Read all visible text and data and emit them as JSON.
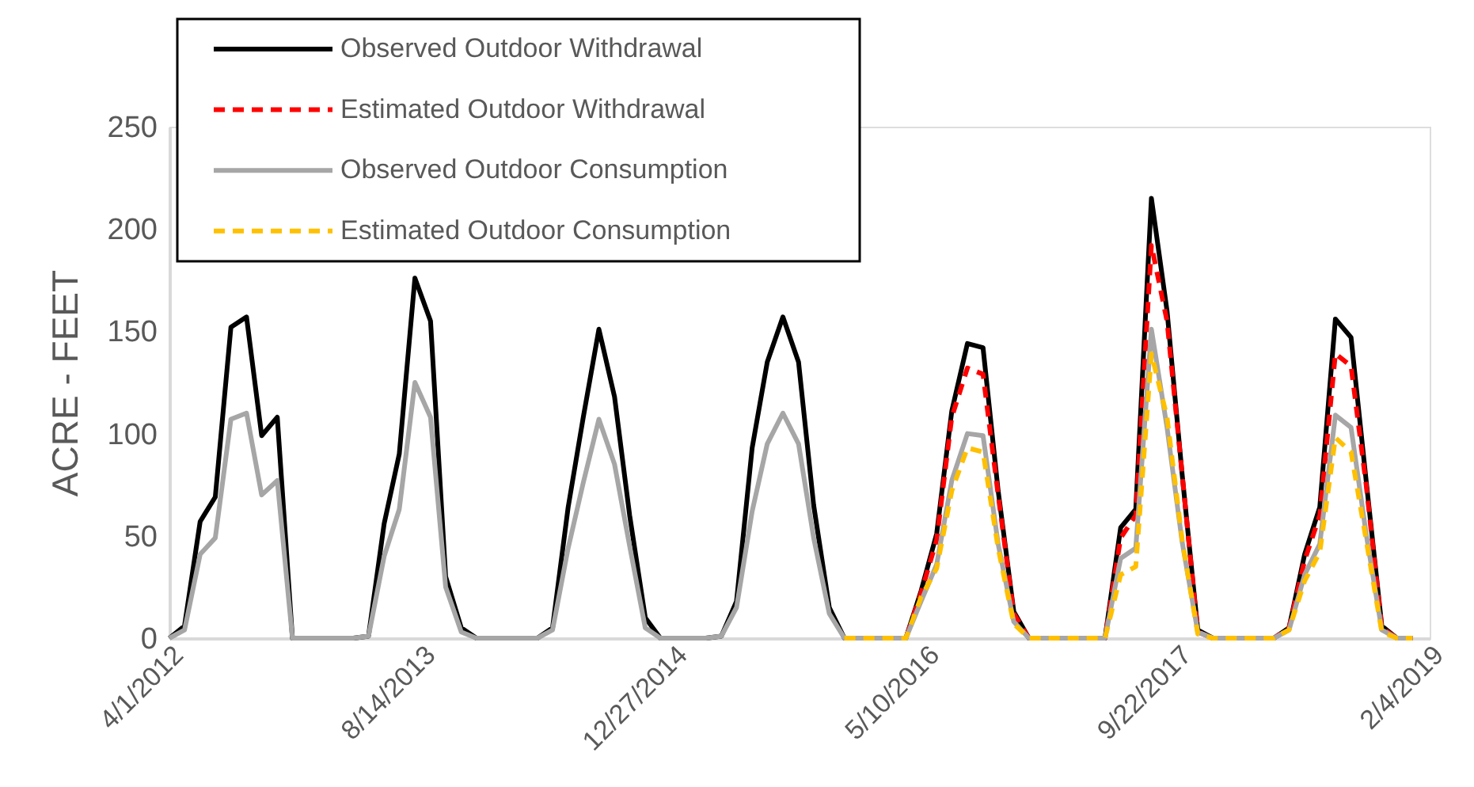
{
  "chart_data": {
    "type": "line",
    "ylabel": "ACRE - FEET",
    "x": [
      "2012-04",
      "2012-05",
      "2012-06",
      "2012-07",
      "2012-08",
      "2012-09",
      "2012-10",
      "2012-11",
      "2012-12",
      "2013-01",
      "2013-02",
      "2013-03",
      "2013-04",
      "2013-05",
      "2013-06",
      "2013-07",
      "2013-08",
      "2013-09",
      "2013-10",
      "2013-11",
      "2013-12",
      "2014-01",
      "2014-02",
      "2014-03",
      "2014-04",
      "2014-05",
      "2014-06",
      "2014-07",
      "2014-08",
      "2014-09",
      "2014-10",
      "2014-11",
      "2014-12",
      "2015-01",
      "2015-02",
      "2015-03",
      "2015-04",
      "2015-05",
      "2015-06",
      "2015-07",
      "2015-08",
      "2015-09",
      "2015-10",
      "2015-11",
      "2015-12",
      "2016-01",
      "2016-02",
      "2016-03",
      "2016-04",
      "2016-05",
      "2016-06",
      "2016-07",
      "2016-08",
      "2016-09",
      "2016-10",
      "2016-11",
      "2016-12",
      "2017-01",
      "2017-02",
      "2017-03",
      "2017-04",
      "2017-05",
      "2017-06",
      "2017-07",
      "2017-08",
      "2017-09",
      "2017-10",
      "2017-11",
      "2017-12",
      "2018-01",
      "2018-02",
      "2018-03",
      "2018-04",
      "2018-05",
      "2018-06",
      "2018-07",
      "2018-08",
      "2018-09",
      "2018-10",
      "2018-11",
      "2018-12",
      "2019-01"
    ],
    "series": [
      {
        "name": "Observed Outdoor Withdrawal",
        "color": "#000000",
        "line_style": "solid",
        "values": [
          0,
          6,
          57,
          69,
          152,
          157,
          99,
          108,
          0,
          0,
          0,
          0,
          0,
          1,
          56,
          90,
          176,
          155,
          30,
          5,
          0,
          0,
          0,
          0,
          0,
          5,
          64,
          108,
          151,
          118,
          60,
          10,
          0,
          0,
          0,
          0,
          1,
          18,
          93,
          135,
          157,
          135,
          65,
          15,
          0,
          0,
          0,
          0,
          0,
          23,
          51,
          111,
          144,
          142,
          72,
          13,
          0,
          0,
          0,
          0,
          0,
          0,
          54,
          63,
          215,
          160,
          80,
          4,
          0,
          0,
          0,
          0,
          0,
          5,
          41,
          64,
          156,
          147,
          77,
          6,
          0,
          0
        ]
      },
      {
        "name": "Estimated Outdoor Withdrawal",
        "color": "#ff0000",
        "line_style": "dashed",
        "values": [
          null,
          null,
          null,
          null,
          null,
          null,
          null,
          null,
          null,
          null,
          null,
          null,
          null,
          null,
          null,
          null,
          null,
          null,
          null,
          null,
          null,
          null,
          null,
          null,
          null,
          null,
          null,
          null,
          null,
          null,
          null,
          null,
          null,
          null,
          null,
          null,
          null,
          null,
          null,
          null,
          null,
          null,
          null,
          null,
          null,
          null,
          null,
          0,
          0,
          22,
          48,
          108,
          132,
          129,
          70,
          12,
          0,
          0,
          0,
          0,
          0,
          0,
          49,
          60,
          192,
          155,
          80,
          3,
          0,
          0,
          0,
          0,
          0,
          5,
          38,
          60,
          139,
          133,
          75,
          5,
          0,
          0
        ]
      },
      {
        "name": "Observed Outdoor Consumption",
        "color": "#a6a6a6",
        "line_style": "solid",
        "values": [
          0,
          4,
          41,
          49,
          107,
          110,
          70,
          77,
          0,
          0,
          0,
          0,
          0,
          1,
          40,
          63,
          125,
          108,
          25,
          3,
          0,
          0,
          0,
          0,
          0,
          4,
          44,
          76,
          107,
          85,
          45,
          5,
          0,
          0,
          0,
          0,
          1,
          15,
          62,
          95,
          110,
          95,
          49,
          12,
          0,
          0,
          0,
          0,
          0,
          18,
          36,
          77,
          100,
          99,
          46,
          8,
          0,
          0,
          0,
          0,
          0,
          0,
          39,
          44,
          151,
          103,
          47,
          3,
          0,
          0,
          0,
          0,
          0,
          4,
          31,
          46,
          109,
          103,
          51,
          4,
          0,
          0
        ]
      },
      {
        "name": "Estimated Outdoor Consumption",
        "color": "#ffc000",
        "line_style": "dashed",
        "values": [
          null,
          null,
          null,
          null,
          null,
          null,
          null,
          null,
          null,
          null,
          null,
          null,
          null,
          null,
          null,
          null,
          null,
          null,
          null,
          null,
          null,
          null,
          null,
          null,
          null,
          null,
          null,
          null,
          null,
          null,
          null,
          null,
          null,
          null,
          null,
          null,
          null,
          null,
          null,
          null,
          null,
          null,
          null,
          null,
          0,
          0,
          0,
          0,
          0,
          20,
          34,
          72,
          93,
          91,
          44,
          7,
          0,
          0,
          0,
          0,
          0,
          0,
          31,
          35,
          139,
          108,
          48,
          2,
          0,
          0,
          0,
          0,
          0,
          4,
          28,
          42,
          98,
          91,
          48,
          3,
          0,
          0
        ]
      }
    ],
    "xlim": [
      "2012-04-01",
      "2019-02-04"
    ],
    "xticks": [
      {
        "value": "2012-04-01",
        "label": "4/1/2012"
      },
      {
        "value": "2013-08-14",
        "label": "8/14/2013"
      },
      {
        "value": "2014-12-27",
        "label": "12/27/2014"
      },
      {
        "value": "2016-05-10",
        "label": "5/10/2016"
      },
      {
        "value": "2017-09-22",
        "label": "9/22/2017"
      },
      {
        "value": "2019-02-04",
        "label": "2/4/2019"
      }
    ],
    "ylim": [
      0,
      250
    ],
    "yticks": [
      0,
      50,
      100,
      150,
      200,
      250
    ],
    "grid": false,
    "legend": "top left",
    "marker": "none"
  }
}
